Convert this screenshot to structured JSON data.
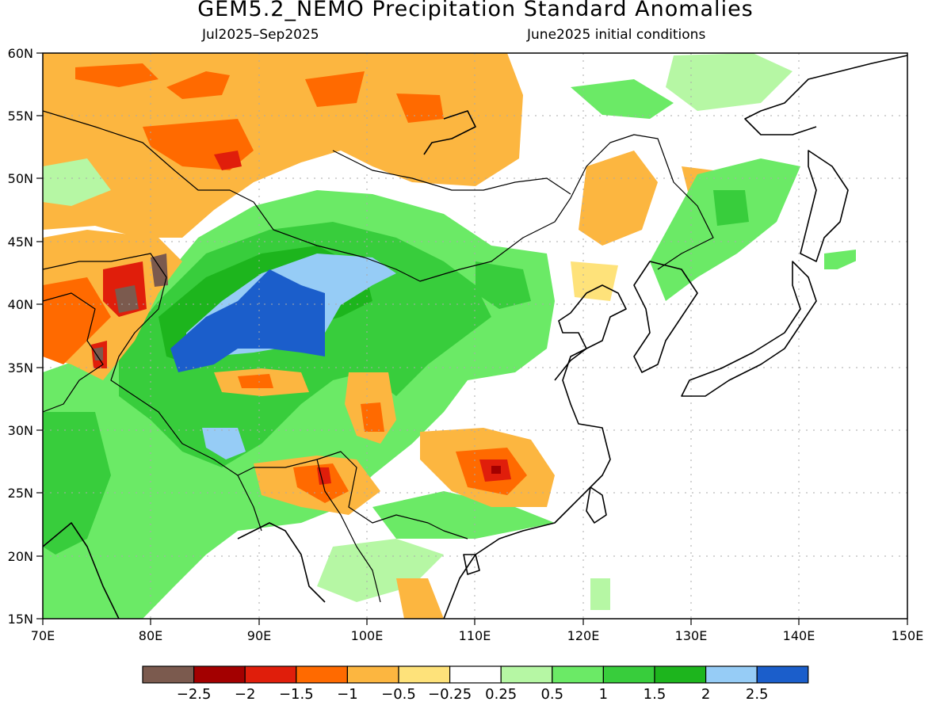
{
  "title": "GEM5.2_NEMO Precipitation Standard Anomalies",
  "period": "Jul2025–Sep2025",
  "init": "June2025 initial conditions",
  "map": {
    "lon_range": [
      70,
      150
    ],
    "lat_range": [
      15,
      60
    ],
    "lon_ticks": [
      "70E",
      "80E",
      "90E",
      "100E",
      "110E",
      "120E",
      "130E",
      "140E",
      "150E"
    ],
    "lat_ticks": [
      "60N",
      "55N",
      "50N",
      "45N",
      "40N",
      "35N",
      "30N",
      "25N",
      "20N",
      "15N"
    ]
  },
  "colorbar": {
    "colors": [
      "#7b5a4e",
      "#a30000",
      "#e01e0b",
      "#ff6a00",
      "#fcb640",
      "#fee27a",
      "#ffffff",
      "#b6f7a4",
      "#6bea66",
      "#38cd3c",
      "#1db51d",
      "#96ccf6",
      "#1b5ecb"
    ],
    "labels": [
      "−2.5",
      "−2",
      "−1.5",
      "−1",
      "−0.5",
      "−0.25",
      "0.25",
      "0.5",
      "1",
      "1.5",
      "2",
      "2.5"
    ]
  }
}
